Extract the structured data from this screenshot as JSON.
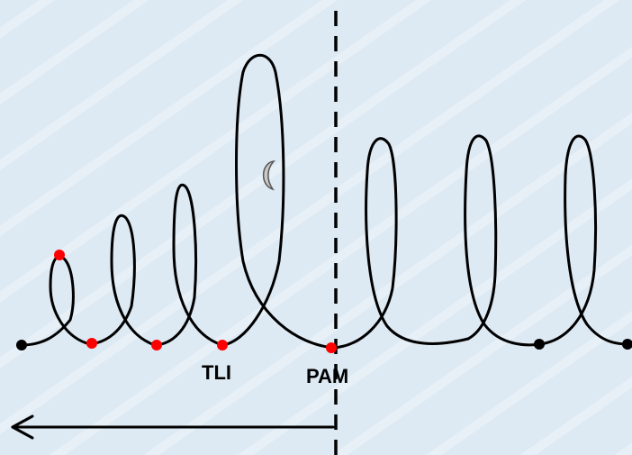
{
  "labels": {
    "tli": "TLI",
    "pam": "PAM"
  },
  "colors": {
    "background": "#dde9f3",
    "stroke": "#000000",
    "event_marker": "#ff0000",
    "end_marker": "#000000",
    "moon": "#c8c8c8"
  },
  "icons": {
    "moon": "crescent-moon-icon",
    "arrow": "left-arrow-icon"
  }
}
